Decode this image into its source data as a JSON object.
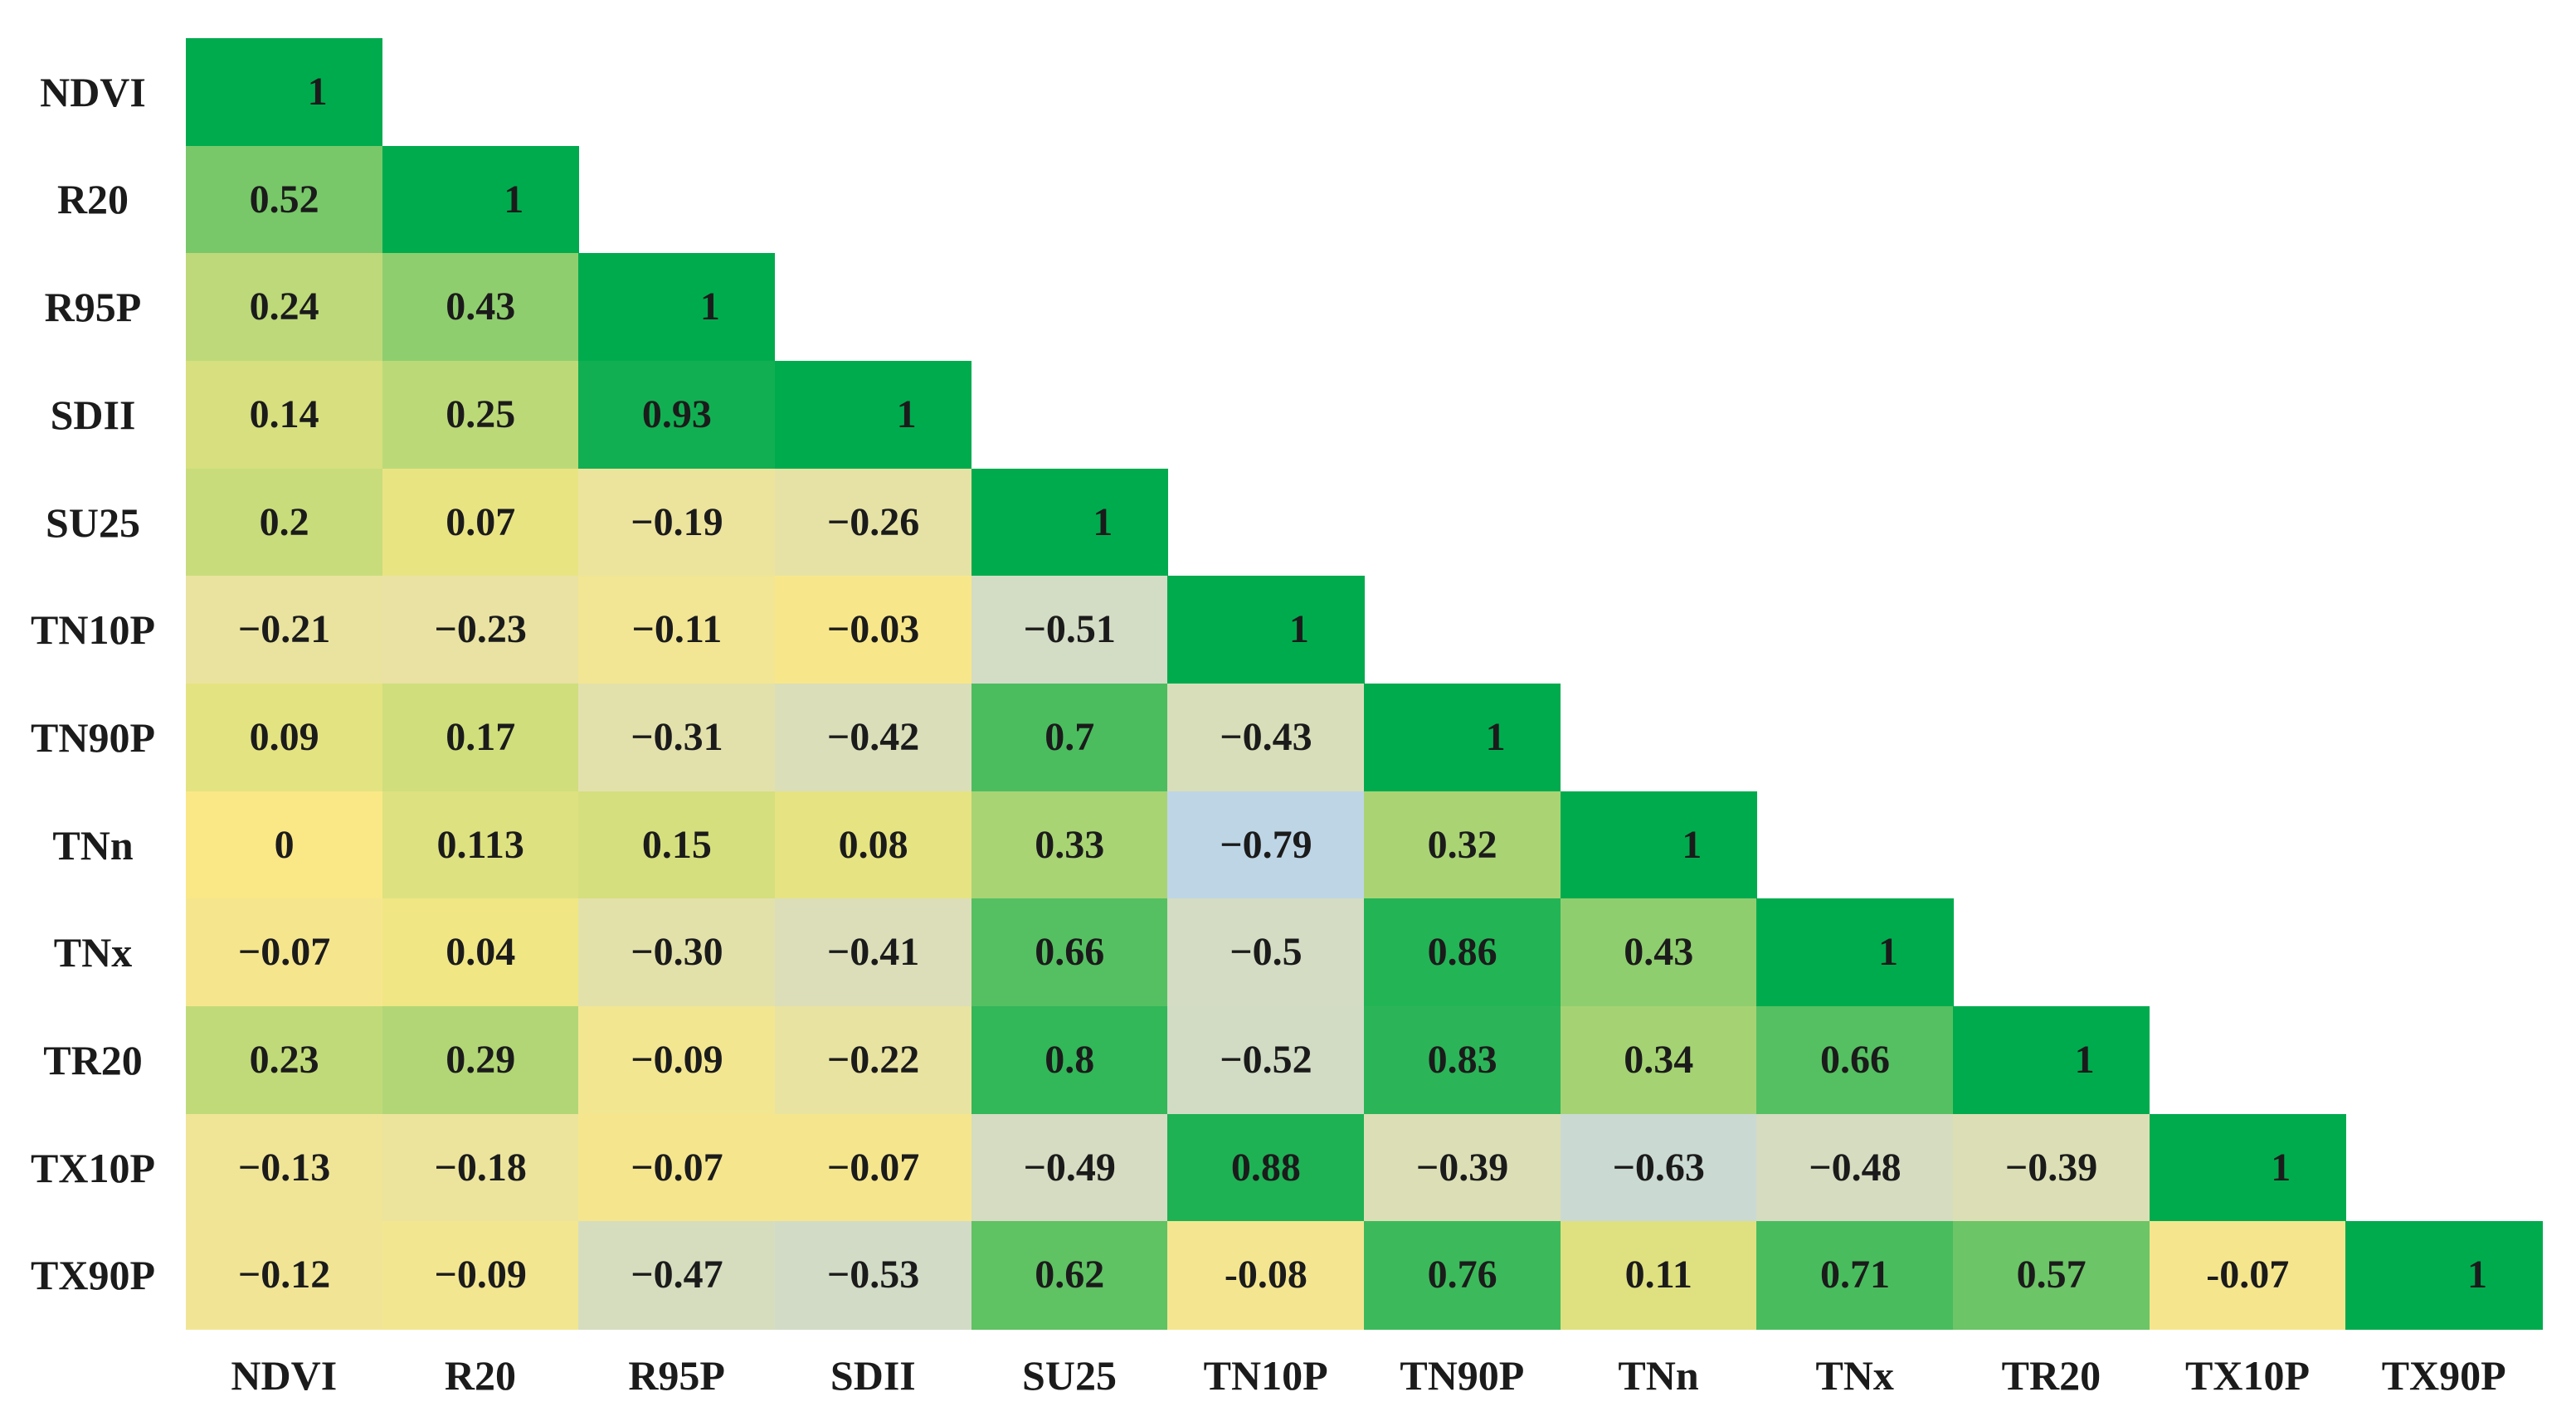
{
  "figure": {
    "background_color": "#ffffff",
    "text_color": "#1b1b1b"
  },
  "chart_data": {
    "type": "heatmap",
    "subtype": "lower-triangular-correlation-matrix",
    "title": "",
    "xlabel": "",
    "ylabel": "",
    "legend": "none",
    "grid": false,
    "value_range": [
      -1,
      1
    ],
    "row_labels": [
      "NDVI",
      "R20",
      "R95P",
      "SDII",
      "SU25",
      "TN10P",
      "TN90P",
      "TNn",
      "TNx",
      "TR20",
      "TX10P",
      "TX90P"
    ],
    "col_labels": [
      "NDVI",
      "R20",
      "R95P",
      "SDII",
      "SU25",
      "TN10P",
      "TN90P",
      "TNn",
      "TNx",
      "TR20",
      "TX10P",
      "TX90P"
    ],
    "cells": [
      [
        "1"
      ],
      [
        "0.52",
        "1"
      ],
      [
        "0.24",
        "0.43",
        "1"
      ],
      [
        "0.14",
        "0.25",
        "0.93",
        "1"
      ],
      [
        "0.2",
        "0.07",
        "−0.19",
        "−0.26",
        "1"
      ],
      [
        "−0.21",
        "−0.23",
        "−0.11",
        "−0.03",
        "−0.51",
        "1"
      ],
      [
        "0.09",
        "0.17",
        "−0.31",
        "−0.42",
        "0.7",
        "−0.43",
        "1"
      ],
      [
        "0",
        "0.113",
        "0.15",
        "0.08",
        "0.33",
        "−0.79",
        "0.32",
        "1"
      ],
      [
        "−0.07",
        "0.04",
        "−0.30",
        "−0.41",
        "0.66",
        "−0.5",
        "0.86",
        "0.43",
        "1"
      ],
      [
        "0.23",
        "0.29",
        "−0.09",
        "−0.22",
        "0.8",
        "−0.52",
        "0.83",
        "0.34",
        "0.66",
        "1"
      ],
      [
        "−0.13",
        "−0.18",
        "−0.07",
        "−0.07",
        "−0.49",
        "0.88",
        "−0.39",
        "−0.63",
        "−0.48",
        "−0.39",
        "1"
      ],
      [
        "−0.12",
        "−0.09",
        "−0.47",
        "−0.53",
        "0.62",
        "-0.08",
        "0.76",
        "0.11",
        "0.71",
        "0.57",
        "-0.07",
        "1"
      ]
    ],
    "colormap": {
      "positive_1": "#00ab4e",
      "zero": "#fae886",
      "negative_1": "#aed0ff",
      "description": "cell color = linear mix from zero-yellow toward green for positive r, toward light blue for negative r"
    }
  }
}
